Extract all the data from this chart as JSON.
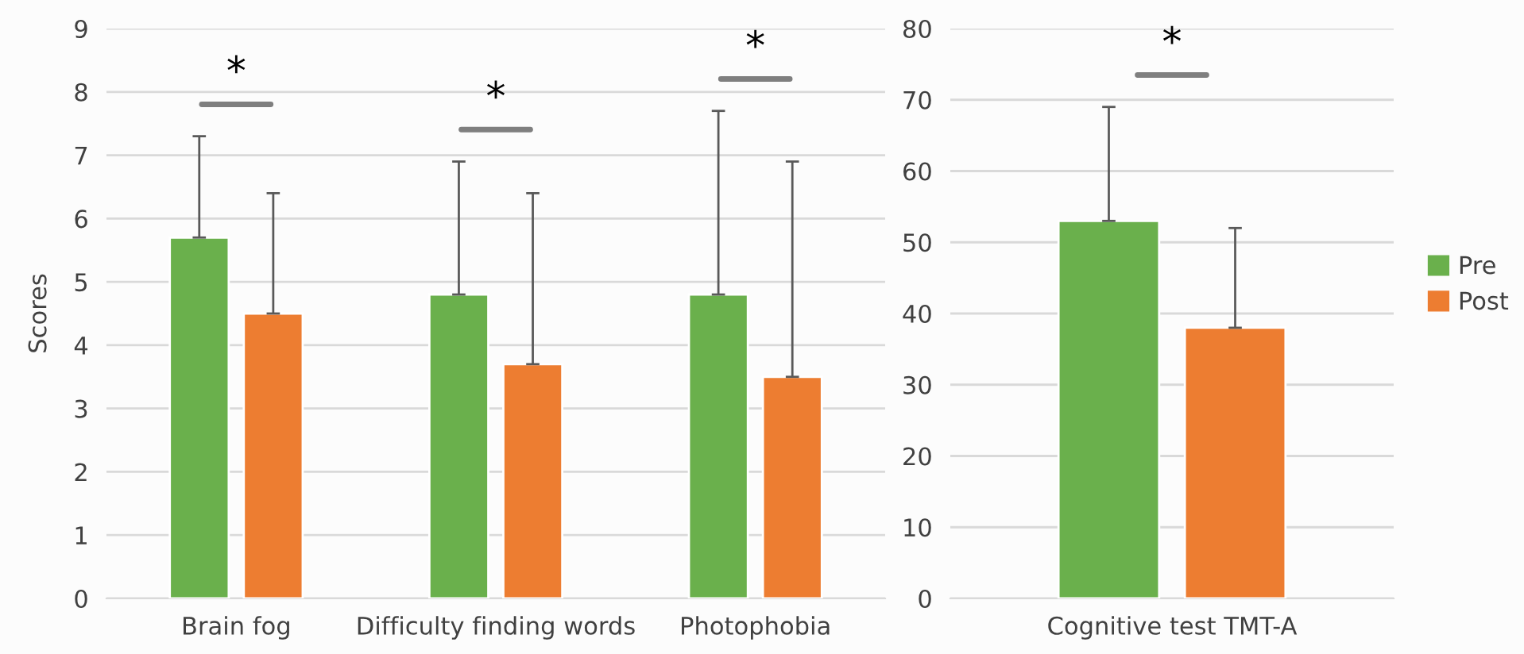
{
  "chart_data": [
    {
      "type": "bar",
      "ylabel": "Scores",
      "categories": [
        "Brain fog",
        "Difficulty finding words",
        "Photophobia"
      ],
      "series": [
        {
          "color": "#6ab04c",
          "values": [
            5.7,
            4.8,
            4.8
          ],
          "errors": [
            [
              5.7,
              7.3
            ],
            [
              4.8,
              6.9
            ],
            [
              4.8,
              7.7
            ]
          ]
        },
        {
          "color": "#ed7d31",
          "values": [
            4.5,
            3.7,
            3.5
          ],
          "errors": [
            [
              4.5,
              6.4
            ],
            [
              3.7,
              6.4
            ],
            [
              3.5,
              6.9
            ]
          ]
        }
      ],
      "ylim": [
        0,
        9
      ],
      "yticks": [
        0,
        1,
        2,
        3,
        4,
        5,
        6,
        7,
        8,
        9
      ],
      "grid": "y",
      "legend": false,
      "annotations": [
        "*",
        "*",
        "*"
      ]
    },
    {
      "type": "bar",
      "categories": [
        "Cognitive test TMT-A"
      ],
      "series": [
        {
          "name": "Pre",
          "color": "#6ab04c",
          "values": [
            53
          ],
          "errors": [
            [
              53,
              69
            ]
          ]
        },
        {
          "name": "Post",
          "color": "#ed7d31",
          "values": [
            38
          ],
          "errors": [
            [
              38,
              52
            ]
          ]
        }
      ],
      "ylim": [
        0,
        80
      ],
      "yticks": [
        0,
        10,
        20,
        30,
        40,
        50,
        60,
        70,
        80
      ],
      "grid": "y",
      "legend": "right",
      "annotations": [
        "*"
      ]
    }
  ]
}
